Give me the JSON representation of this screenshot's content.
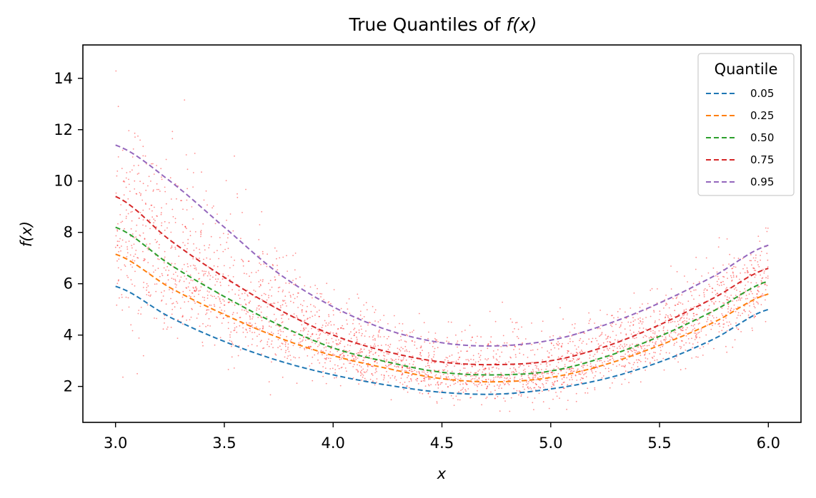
{
  "chart_data": {
    "type": "line",
    "title_prefix": "True Quantiles of ",
    "title_math": "f(x)",
    "xlabel": "x",
    "ylabel": "f(x)",
    "xlim": [
      2.85,
      6.15
    ],
    "ylim": [
      0.6,
      15.3
    ],
    "xticks": [
      "3.0",
      "3.5",
      "4.0",
      "4.5",
      "5.0",
      "5.5",
      "6.0"
    ],
    "yticks": [
      "2",
      "4",
      "6",
      "8",
      "10",
      "12",
      "14"
    ],
    "legend": {
      "title": "Quantile",
      "placement": "top-right"
    },
    "x": [
      3.0,
      3.25,
      3.5,
      3.75,
      4.0,
      4.25,
      4.5,
      4.75,
      5.0,
      5.25,
      5.5,
      5.75,
      6.0
    ],
    "series": [
      {
        "name": "0.05",
        "color": "#1f77b4",
        "values": [
          5.9,
          4.7,
          3.75,
          3.0,
          2.45,
          2.05,
          1.77,
          1.7,
          1.9,
          2.3,
          2.95,
          3.85,
          5.0
        ]
      },
      {
        "name": "0.25",
        "color": "#ff7f0e",
        "values": [
          7.15,
          5.85,
          4.8,
          3.9,
          3.2,
          2.7,
          2.3,
          2.18,
          2.35,
          2.85,
          3.6,
          4.5,
          5.6
        ]
      },
      {
        "name": "0.50",
        "color": "#2ca02c",
        "values": [
          8.2,
          6.75,
          5.5,
          4.4,
          3.5,
          2.95,
          2.55,
          2.45,
          2.6,
          3.15,
          3.95,
          4.95,
          6.1
        ]
      },
      {
        "name": "0.75",
        "color": "#d62728",
        "values": [
          9.4,
          7.7,
          6.25,
          5.0,
          4.0,
          3.35,
          2.95,
          2.85,
          3.0,
          3.55,
          4.4,
          5.45,
          6.6
        ]
      },
      {
        "name": "0.95",
        "color": "#9467bd",
        "values": [
          11.4,
          10.0,
          8.2,
          6.4,
          5.1,
          4.2,
          3.7,
          3.58,
          3.8,
          4.4,
          5.25,
          6.3,
          7.5
        ]
      }
    ],
    "scatter": {
      "color": "#ff0000",
      "description_count": 3000
    },
    "grid": false
  }
}
